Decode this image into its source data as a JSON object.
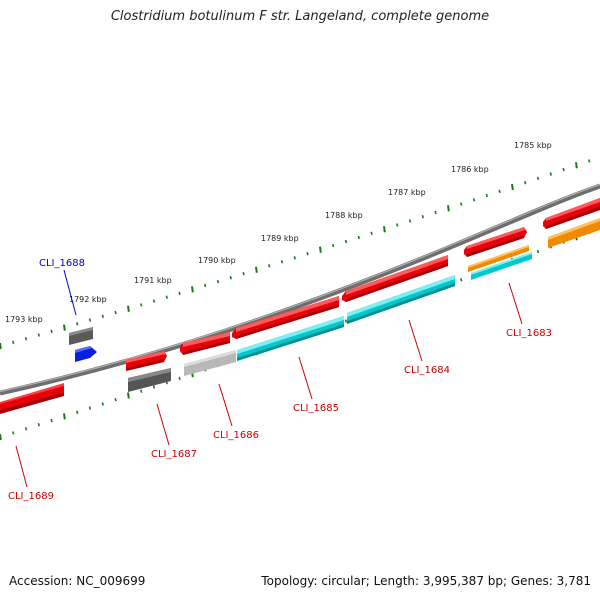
{
  "title": "Clostridium botulinum F str. Langeland, complete genome",
  "footer": {
    "accession": "Accession: NC_009699",
    "stats": "Topology: circular; Length: 3,995,387 bp; Genes: 3,781"
  },
  "colors": {
    "backbone": "#777777",
    "tick": "#1a7a1a",
    "red_gene": "#e8000b",
    "cyan_gene": "#00c8cc",
    "gray_gene": "#555555",
    "light_gene": "#b8b8b8",
    "blue_gene": "#0a1ee0",
    "orange_gene": "#f08a00",
    "red_label": "#cc0000",
    "blue_label": "#0000cc"
  },
  "scale_labels": [
    "1793 kbp",
    "1792 kbp",
    "1791 kbp",
    "1790 kbp",
    "1789 kbp",
    "1788 kbp",
    "1787 kbp",
    "1786 kbp",
    "1785 kbp"
  ],
  "gene_labels": [
    "CLI_1688",
    "CLI_1689",
    "CLI_1687",
    "CLI_1686",
    "CLI_1685",
    "CLI_1684",
    "CLI_1683"
  ]
}
